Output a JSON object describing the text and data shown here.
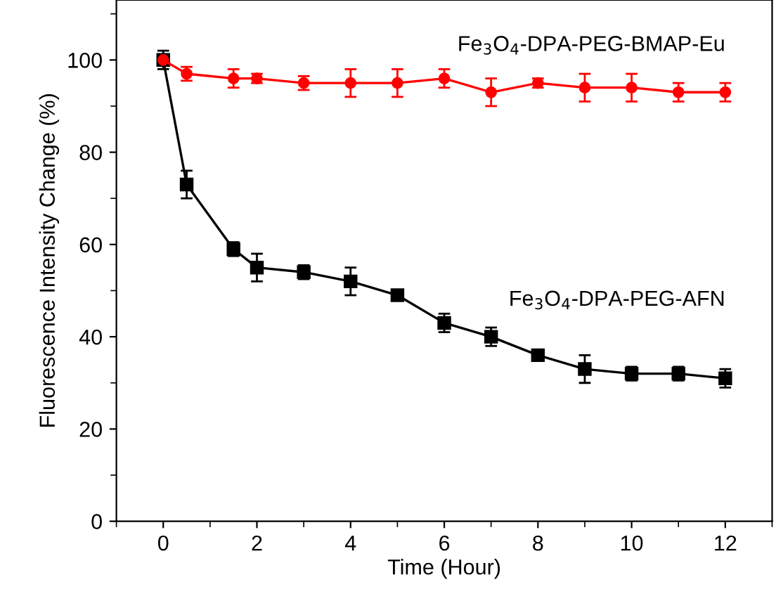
{
  "chart_data": {
    "type": "line",
    "xlabel": "Time (Hour)",
    "ylabel": "Fluorescence Intensity Change (%)",
    "x": [
      0,
      0.5,
      1.5,
      2,
      3,
      4,
      5,
      6,
      7,
      8,
      9,
      10,
      11,
      12
    ],
    "series": [
      {
        "name": "Fe$_{3}$O$_{4}$-DPA-PEG-BMAP-Eu",
        "color": "#ff0000",
        "marker": "circle",
        "values": [
          100,
          97,
          96,
          96,
          95,
          95,
          95,
          96,
          93,
          95,
          94,
          94,
          93,
          93
        ],
        "errors": [
          null,
          1.5,
          2,
          1,
          1.5,
          3,
          3,
          2,
          3,
          1,
          3,
          3,
          2,
          2
        ]
      },
      {
        "name": "Fe$_{3}$O$_{4}$-DPA-PEG-AFN",
        "color": "#000000",
        "marker": "square",
        "values": [
          100,
          73,
          59,
          55,
          54,
          52,
          49,
          43,
          40,
          36,
          33,
          32,
          32,
          31
        ],
        "errors": [
          2,
          3,
          1.5,
          3,
          1.5,
          3,
          0.5,
          2,
          2,
          0.5,
          3,
          1.5,
          1.5,
          2
        ]
      }
    ],
    "xlim": [
      -1,
      13
    ],
    "xticks": [
      0,
      2,
      4,
      6,
      8,
      10,
      12
    ],
    "ylim": [
      0,
      113
    ],
    "yticks": [
      0,
      20,
      40,
      60,
      80,
      100
    ],
    "grid": false,
    "legend": false,
    "line_style": "solid"
  }
}
